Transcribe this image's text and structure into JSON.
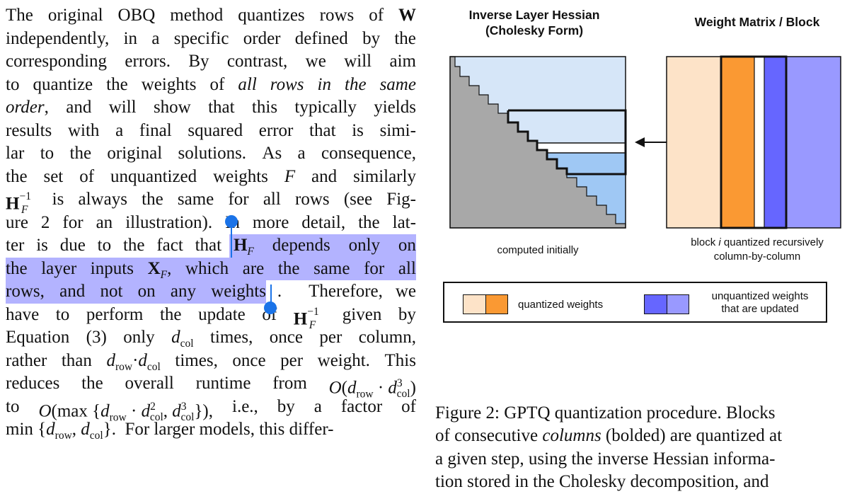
{
  "left_text": {
    "lines": [
      "The original OBQ method quantizes rows of W",
      "independently, in a specific order defined by the",
      "corresponding errors. By contrast, we will aim",
      "to quantize the weights of all rows in the same",
      "order, and will show that this typically yields",
      "results with a final squared error that is simi-",
      "lar to the original solutions. As a consequence,",
      "the set of unquantized weights F and similarly",
      "H_F^-1 is always the same for all rows (see Fig-",
      "ure 2 for an illustration). In more detail, the lat-",
      "ter is due to the fact that H_F depends only on",
      "the layer inputs X_F, which are the same for all",
      "rows, and not on any weights. Therefore, we",
      "have to perform the update of H_F^-1 given by",
      "Equation (3) only d_col times, once per column,",
      "rather than d_row·d_col times, once per weight. This",
      "reduces the overall runtime from O(d_row · d_col^3)",
      "to O(max {d_row · d_col^2, d_col^3}), i.e., by a factor of",
      "min {d_row, d_col}. For larger models, this differ-"
    ]
  },
  "figure": {
    "hessian_title": "Inverse Layer Hessian (Cholesky Form)",
    "hessian_title_l1": "Inverse Layer Hessian",
    "hessian_title_l2": "(Cholesky Form)",
    "weight_title": "Weight Matrix / Block",
    "hessian_caption": "computed initially",
    "weight_caption_l1": "block i quantized recursively",
    "weight_caption_l1a": "block ",
    "weight_caption_l1b": "i",
    "weight_caption_l1c": " quantized recursively",
    "weight_caption_l2": "column-by-column",
    "legend_quantized": "quantized weights",
    "legend_unquantized_l1": "unquantized weights",
    "legend_unquantized_l2": "that are updated",
    "colors": {
      "quantized_light": "#fde3c8",
      "quantized_dark": "#fa9933",
      "unquantized_dark": "#6666ff",
      "unquantized_light": "#9999ff",
      "hessian_light": "#d6e6f8",
      "hessian_blue": "#9fc8f4",
      "hessian_gray": "#a8a8a8",
      "selection": "#b3b3ff",
      "handle": "#1a73e8"
    }
  },
  "caption": {
    "line1": "Figure 2: GPTQ quantization procedure. Blocks",
    "line2a": "of consecutive ",
    "line2b": "columns",
    "line2c": " (bolded) are quantized at",
    "line3": "a given step, using the inverse Hessian informa-",
    "line4": "tion stored in the Cholesky decomposition, and"
  }
}
